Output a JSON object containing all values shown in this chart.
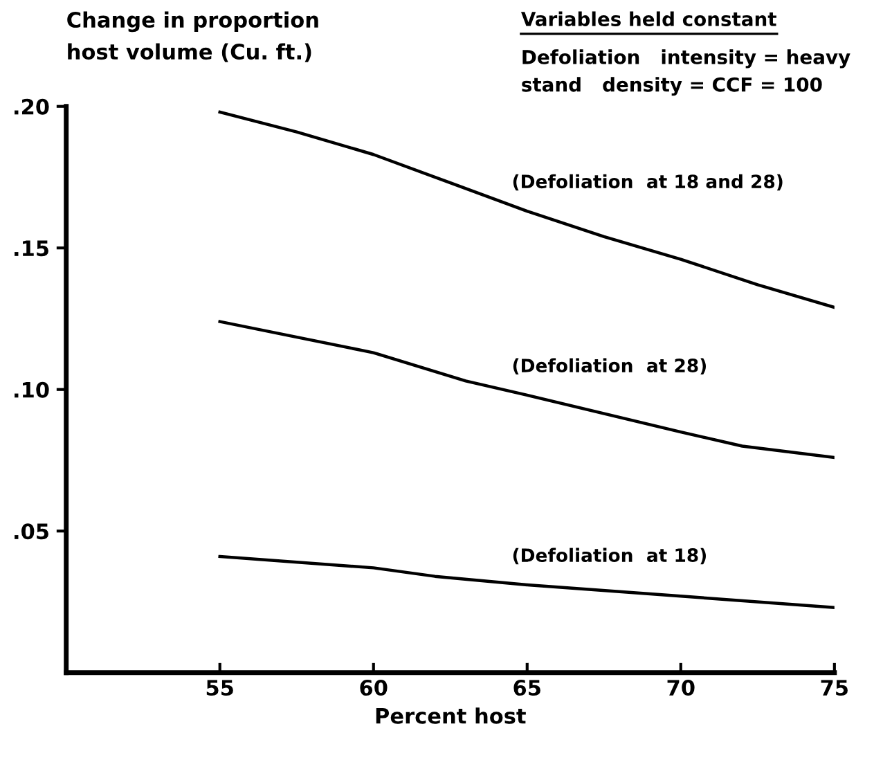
{
  "chart_data": {
    "type": "line",
    "ylabel": "Change in proportion\nhost volume (Cu. ft.)",
    "xlabel": "Percent host",
    "annotations": [
      "Variables held constant",
      "Defoliation   intensity = heavy\nstand   density = CCF = 100"
    ],
    "series": [
      {
        "name": "(Defoliation  at 18 and 28)",
        "color": "#000000",
        "x": [
          55,
          57.5,
          60,
          62.5,
          65,
          67.5,
          70,
          72.5,
          75
        ],
        "values": [
          0.198,
          0.191,
          0.183,
          0.173,
          0.163,
          0.154,
          0.146,
          0.137,
          0.129
        ]
      },
      {
        "name": "(Defoliation  at 28)",
        "color": "#000000",
        "x": [
          55,
          60,
          63,
          65,
          70,
          72,
          75
        ],
        "values": [
          0.124,
          0.113,
          0.103,
          0.098,
          0.085,
          0.08,
          0.076
        ]
      },
      {
        "name": "(Defoliation  at 18)",
        "color": "#000000",
        "x": [
          55,
          60,
          62,
          65,
          70,
          75
        ],
        "values": [
          0.041,
          0.037,
          0.034,
          0.031,
          0.027,
          0.023
        ]
      }
    ],
    "xlim": [
      50,
      75
    ],
    "ylim": [
      0,
      0.2
    ],
    "xticks": [
      55,
      60,
      65,
      70,
      75
    ],
    "yticks": [
      {
        "value": 0.05,
        "label": ".05"
      },
      {
        "value": 0.1,
        "label": ".10"
      },
      {
        "value": 0.15,
        "label": ".15"
      },
      {
        "value": 0.2,
        "label": ".20"
      }
    ],
    "grid": false,
    "legend": false,
    "marker": "none",
    "line_style": "solid"
  }
}
